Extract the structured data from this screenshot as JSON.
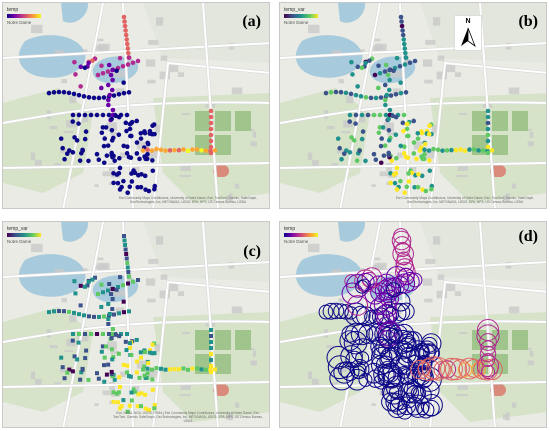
{
  "panels": [
    {
      "label": "(a)",
      "legend_title": "temp",
      "scale": "plasma",
      "style": "dot",
      "place": "Notre Dame",
      "attribution": "Esri Community Maps Contributors, University of Notre Dame, Esri, TomTom, Garmin, SafeGraph, GeoTechnologies, Inc, METI/NASA, USGS, EPA, NPS, US Census Bureau, USDA"
    },
    {
      "label": "(b)",
      "legend_title": "temp_var",
      "scale": "viridis",
      "style": "dot",
      "place": "Notre Dame",
      "north": "N",
      "attribution": "Esri Community Maps Contributors, University of Notre Dame, Esri, TomTom, Garmin, SafeGraph, GeoTechnologies, Inc, METI/NASA, USGS, EPA, NPS, US Census Bureau, USDA"
    },
    {
      "label": "(c)",
      "legend_title": "temp_var",
      "scale": "viridis",
      "style": "square",
      "place": "Notre Dame",
      "attribution": "Esri, NASA, NGA, USGS, FEMA | Esri Community Maps Contributors, University of Notre Dame, Esri, TomTom, Garmin, SafeGraph, GeoTechnologies, Inc, METI/NASA, USGS, EPA, NPS, US Census Bureau, USDA"
    },
    {
      "label": "(d)",
      "legend_title": "temp",
      "scale": "plasma",
      "style": "circle",
      "place": "Notre Dame",
      "attribution": ""
    }
  ],
  "colors": {
    "land": "#e9ebe4",
    "campus": "#d6e3c9",
    "water": "#a7cadd",
    "road": "#ffffff",
    "building": "#c9c9c9"
  }
}
